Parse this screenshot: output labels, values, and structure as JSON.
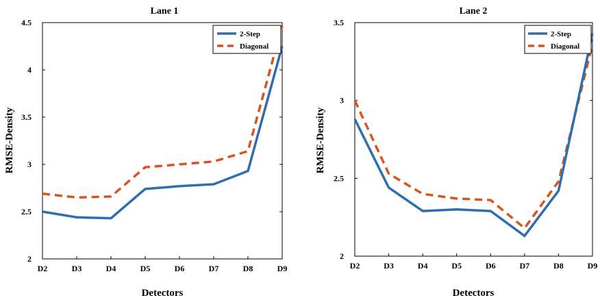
{
  "chart_data": [
    {
      "type": "line",
      "title": "Lane 1",
      "xlabel": "Detectors",
      "ylabel": "RMSE-Density",
      "categories": [
        "D2",
        "D3",
        "D4",
        "D5",
        "D6",
        "D7",
        "D8",
        "D9"
      ],
      "ylim": [
        2,
        4.5
      ],
      "yticks": [
        "2",
        "2.5",
        "3",
        "3.5",
        "4",
        "4.5"
      ],
      "grid": false,
      "legend_position": "top-right",
      "series": [
        {
          "name": "2-Step",
          "color": "#2E6EB0",
          "style": "solid",
          "values": [
            2.5,
            2.44,
            2.43,
            2.74,
            2.77,
            2.79,
            2.93,
            4.25
          ]
        },
        {
          "name": "Diagonal",
          "color": "#D9541E",
          "style": "dashed",
          "values": [
            2.69,
            2.65,
            2.66,
            2.97,
            3.0,
            3.03,
            3.14,
            4.47
          ]
        }
      ]
    },
    {
      "type": "line",
      "title": "Lane 2",
      "xlabel": "Detectors",
      "ylabel": "RMSE-Density",
      "categories": [
        "D2",
        "D3",
        "D4",
        "D5",
        "D6",
        "D7",
        "D8",
        "D9"
      ],
      "ylim": [
        2,
        3.5
      ],
      "yticks": [
        "2",
        "2.5",
        "3",
        "3.5"
      ],
      "grid": false,
      "legend_position": "top-right",
      "series": [
        {
          "name": "2-Step",
          "color": "#2E6EB0",
          "style": "solid",
          "values": [
            2.88,
            2.44,
            2.29,
            2.3,
            2.29,
            2.13,
            2.42,
            3.43
          ]
        },
        {
          "name": "Diagonal",
          "color": "#D9541E",
          "style": "dashed",
          "values": [
            3.0,
            2.53,
            2.4,
            2.37,
            2.36,
            2.18,
            2.48,
            3.36
          ]
        }
      ]
    }
  ]
}
